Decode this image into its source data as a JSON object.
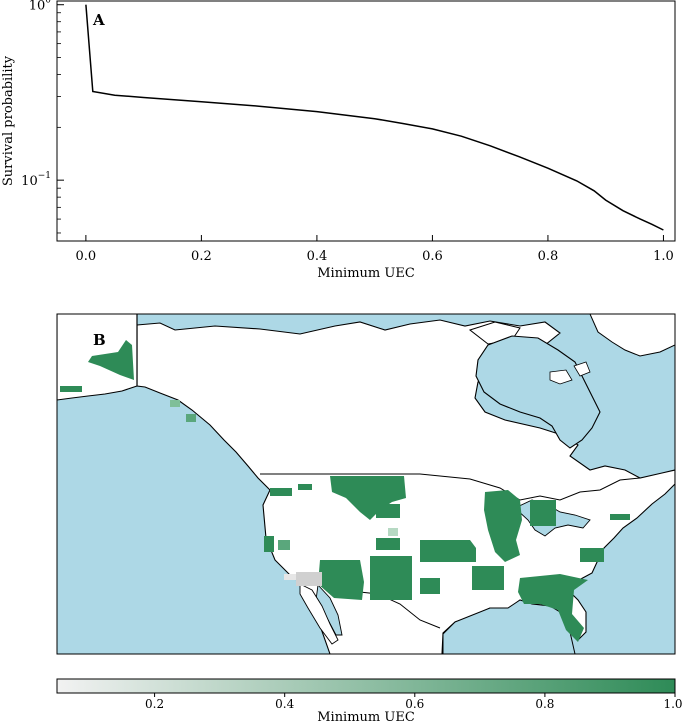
{
  "chart_data": [
    {
      "panel_label": "A",
      "type": "line",
      "xlabel": "Minimum UEC",
      "ylabel": "Survival probability",
      "xlim": [
        -0.05,
        1.02
      ],
      "ylim": [
        0.045,
        1.05
      ],
      "y_scale": "log",
      "x_ticks": [
        "0.0",
        "0.2",
        "0.4",
        "0.6",
        "0.8",
        "1.0"
      ],
      "y_ticks": [
        {
          "value": 1.0,
          "base": "10",
          "exp": "0"
        },
        {
          "value": 0.1,
          "base": "10",
          "exp": "−1"
        }
      ],
      "grid": false,
      "line_color": "#000000",
      "series": [
        {
          "x": [
            0.0,
            0.012,
            0.05,
            0.1,
            0.2,
            0.3,
            0.4,
            0.5,
            0.55,
            0.6,
            0.65,
            0.7,
            0.75,
            0.8,
            0.85,
            0.88,
            0.9,
            0.93,
            0.96,
            0.98,
            1.0
          ],
          "y": [
            1.0,
            0.32,
            0.305,
            0.296,
            0.28,
            0.264,
            0.246,
            0.224,
            0.21,
            0.196,
            0.178,
            0.157,
            0.136,
            0.117,
            0.099,
            0.087,
            0.077,
            0.067,
            0.06,
            0.056,
            0.052
          ]
        }
      ]
    },
    {
      "panel_label": "B",
      "type": "map",
      "colorbar": {
        "label": "Minimum UEC",
        "min": 0.05,
        "max": 1.0,
        "ticks": [
          "0.2",
          "0.4",
          "0.6",
          "0.8",
          "1.0"
        ],
        "tick_values": [
          0.2,
          0.4,
          0.6,
          0.8,
          1.0
        ],
        "color_low": "#f2f2f2",
        "color_high": "#2e8b57"
      },
      "colors": {
        "water": "#add8e6",
        "land": "#ffffff",
        "coast": "#000000",
        "high_uec": "#2e8b57",
        "low_uec": "#d8d8d8"
      }
    }
  ]
}
